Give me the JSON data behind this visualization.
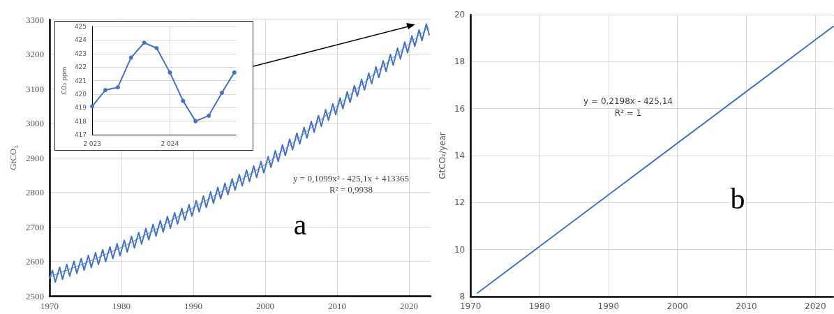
{
  "chart_data": [
    {
      "type": "line",
      "ylabel": "GtCO₂",
      "xlim": [
        1970,
        2023
      ],
      "xticks": [
        1970,
        1980,
        1990,
        2000,
        2010,
        2020
      ],
      "ylim": [
        2500,
        3300
      ],
      "yticks": [
        2500,
        2600,
        2700,
        2800,
        2900,
        3000,
        3100,
        3200,
        3300
      ],
      "grid": true,
      "marker": "none",
      "line_style": "solid",
      "annotations": [
        "y = 0,1099x² - 425,1x + 413365",
        "R² = 0,9938",
        "a"
      ],
      "series": [
        {
          "color": "#4472c4",
          "x": [
            1970,
            1970.4,
            1970.8,
            1971.4,
            1971.8,
            1972.4,
            1972.8,
            1973.4,
            1973.8,
            1974.4,
            1974.8,
            1975.4,
            1975.8,
            1976.4,
            1976.8,
            1977.4,
            1977.8,
            1978.4,
            1978.8,
            1979.4,
            1979.8,
            1980.4,
            1980.8,
            1981.4,
            1981.8,
            1982.4,
            1982.8,
            1983.4,
            1983.8,
            1984.4,
            1984.8,
            1985.4,
            1985.8,
            1986.4,
            1986.8,
            1987.4,
            1987.8,
            1988.4,
            1988.8,
            1989.4,
            1989.8,
            1990.4,
            1990.8,
            1991.4,
            1991.8,
            1992.4,
            1992.8,
            1993.4,
            1993.8,
            1994.4,
            1994.8,
            1995.4,
            1995.8,
            1996.4,
            1996.8,
            1997.4,
            1997.8,
            1998.4,
            1998.8,
            1999.4,
            1999.8,
            2000.4,
            2000.8,
            2001.4,
            2001.8,
            2002.4,
            2002.8,
            2003.4,
            2003.8,
            2004.4,
            2004.8,
            2005.4,
            2005.8,
            2006.4,
            2006.8,
            2007.4,
            2007.8,
            2008.4,
            2008.8,
            2009.4,
            2009.8,
            2010.4,
            2010.8,
            2011.4,
            2011.8,
            2012.4,
            2012.8,
            2013.4,
            2013.8,
            2014.4,
            2014.8,
            2015.4,
            2015.8,
            2016.4,
            2016.8,
            2017.4,
            2017.8,
            2018.4,
            2018.8,
            2019.4,
            2019.8,
            2020.4,
            2020.8,
            2021.4,
            2021.8,
            2022.4,
            2022.8
          ],
          "values": [
            2550,
            2574,
            2540,
            2583,
            2548,
            2591,
            2557,
            2600,
            2565,
            2608,
            2574,
            2617,
            2582,
            2625,
            2591,
            2634,
            2599,
            2642,
            2608,
            2651,
            2616,
            2661,
            2627,
            2672,
            2639,
            2684,
            2650,
            2695,
            2662,
            2707,
            2673,
            2718,
            2685,
            2730,
            2696,
            2741,
            2708,
            2753,
            2719,
            2764,
            2731,
            2776,
            2743,
            2789,
            2756,
            2801,
            2768,
            2814,
            2781,
            2826,
            2793,
            2839,
            2806,
            2851,
            2818,
            2864,
            2831,
            2876,
            2843,
            2889,
            2856,
            2903,
            2872,
            2920,
            2889,
            2937,
            2906,
            2954,
            2923,
            2971,
            2940,
            2988,
            2957,
            3005,
            2974,
            3022,
            2991,
            3039,
            3008,
            3056,
            3025,
            3073,
            3042,
            3091,
            3060,
            3109,
            3078,
            3127,
            3096,
            3145,
            3114,
            3163,
            3132,
            3181,
            3150,
            3199,
            3168,
            3217,
            3186,
            3235,
            3204,
            3253,
            3222,
            3270,
            3239,
            3287,
            3256
          ]
        },
        {
          "color": "#4472c4",
          "line_style": "dotted",
          "x": [
            1970,
            1975,
            1980,
            1985,
            1990,
            1995,
            2000,
            2005,
            2010,
            2015,
            2020,
            2022.8
          ],
          "values": [
            2555,
            2595,
            2640,
            2695,
            2755,
            2815,
            2880,
            2962,
            3050,
            3140,
            3230,
            3278
          ]
        }
      ]
    },
    {
      "type": "line",
      "ylabel": "CO₂ ppm",
      "xlim": [
        2023,
        2024.85
      ],
      "xticks": [
        {
          "value": 2023,
          "label": "2 023"
        },
        {
          "value": 2024,
          "label": "2 024"
        }
      ],
      "ylim": [
        417,
        425
      ],
      "yticks": [
        417,
        418,
        419,
        420,
        421,
        422,
        423,
        424,
        425
      ],
      "grid": true,
      "marker": "circle",
      "line_style": "solid",
      "series": [
        {
          "color": "#4472c4",
          "x": [
            2023,
            2023.17,
            2023.33,
            2023.5,
            2023.67,
            2023.83,
            2024,
            2024.17,
            2024.33,
            2024.5,
            2024.67,
            2024.83
          ],
          "values": [
            419.1,
            420.3,
            420.5,
            422.7,
            423.8,
            423.4,
            421.6,
            419.5,
            418.0,
            418.4,
            420.1,
            421.6
          ]
        }
      ]
    },
    {
      "type": "line",
      "ylabel": "GtCO₂/year",
      "xlim": [
        1970,
        2022.6
      ],
      "xticks": [
        1970,
        1980,
        1990,
        2000,
        2010,
        2020
      ],
      "ylim": [
        8,
        20
      ],
      "yticks": [
        8,
        10,
        12,
        14,
        16,
        18,
        20
      ],
      "grid": true,
      "marker": "none",
      "line_style": "solid",
      "annotations": [
        "y = 0,2198x - 425,14",
        "R² = 1",
        "b"
      ],
      "series": [
        {
          "color": "#4472c4",
          "x": [
            1971,
            1980,
            1990,
            2000,
            2010,
            2020,
            2022.6
          ],
          "values": [
            8.15,
            10.13,
            12.33,
            14.53,
            16.73,
            18.93,
            19.5
          ]
        }
      ]
    }
  ]
}
